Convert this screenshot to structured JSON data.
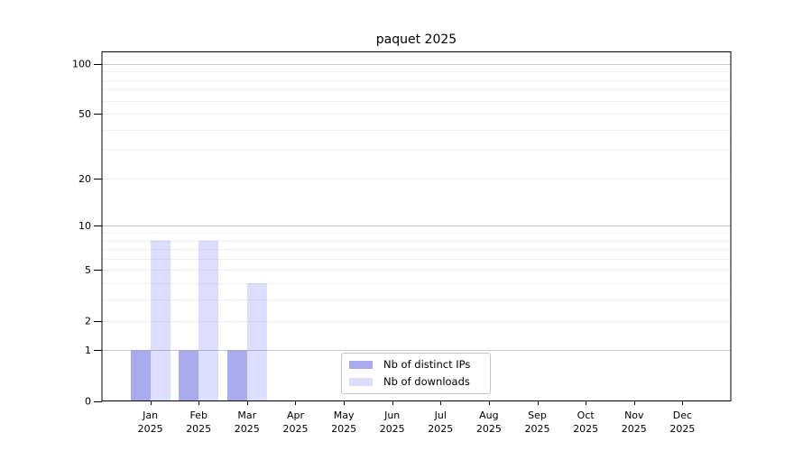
{
  "chart_data": {
    "type": "bar",
    "title": "paquet 2025",
    "categories": [
      "Jan",
      "Feb",
      "Mar",
      "Apr",
      "May",
      "Jun",
      "Jul",
      "Aug",
      "Sep",
      "Oct",
      "Nov",
      "Dec"
    ],
    "x_year_label": "2025",
    "series": [
      {
        "name": "Nb of distinct IPs",
        "color": "#AAAAEE",
        "values": [
          1,
          1,
          1,
          0,
          0,
          0,
          0,
          0,
          0,
          0,
          0,
          0
        ]
      },
      {
        "name": "Nb of downloads",
        "color": "#DDDDFF",
        "values": [
          8,
          8,
          4,
          0,
          0,
          0,
          0,
          0,
          0,
          0,
          0,
          0
        ]
      }
    ],
    "y_axis": {
      "scale": "log10(1+y)",
      "tick_values": [
        0,
        1,
        2,
        5,
        10,
        20,
        50,
        100
      ],
      "minor_grid_values": [
        2,
        3,
        4,
        5,
        6,
        7,
        8,
        9,
        20,
        30,
        40,
        50,
        60,
        70,
        80,
        90
      ],
      "major_grid_values": [
        1,
        10,
        100
      ],
      "ylim": [
        0,
        118
      ]
    },
    "xlabel": "",
    "ylabel": "",
    "grid": true,
    "legend_position": "lower center"
  },
  "colors": {
    "background": "#ffffff",
    "axis": "#000000",
    "text": "#000000",
    "minor_grid": "rgba(0,0,0,0.06)",
    "major_grid": "rgba(0,0,0,0.21)",
    "legend_border": "#c4c4c4",
    "legend_background": "#ffffff"
  }
}
